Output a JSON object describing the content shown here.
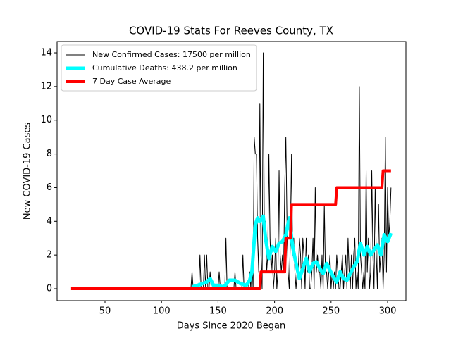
{
  "chart_data": {
    "type": "line",
    "title": "COVID-19 Stats For Reeves County, TX",
    "x_label": "Days Since 2020 Began",
    "y_label": "New COVID-19 Cases",
    "xlim": [
      7.6,
      316.2
    ],
    "ylim": [
      -0.71,
      14.67
    ],
    "xticks": [
      50,
      100,
      150,
      200,
      250,
      300
    ],
    "yticks": [
      0,
      2,
      4,
      6,
      8,
      10,
      12,
      14
    ],
    "legend": "upper left",
    "series": [
      {
        "name": "New Confirmed Cases: 17500 per million",
        "color": "#000000",
        "linewidth": 1,
        "x": [
          126,
          127,
          128,
          129,
          130,
          131,
          132,
          133,
          134,
          135,
          136,
          137,
          138,
          139,
          140,
          141,
          142,
          143,
          144,
          145,
          146,
          147,
          148,
          149,
          150,
          151,
          152,
          153,
          154,
          155,
          156,
          157,
          158,
          159,
          160,
          161,
          162,
          163,
          164,
          165,
          166,
          167,
          168,
          169,
          170,
          171,
          172,
          173,
          174,
          175,
          176,
          177,
          178,
          179,
          180,
          181,
          182,
          183,
          184,
          185,
          186,
          187,
          188,
          189,
          190,
          191,
          192,
          193,
          194,
          195,
          196,
          197,
          198,
          199,
          200,
          201,
          202,
          203,
          204,
          205,
          206,
          207,
          208,
          209,
          210,
          211,
          212,
          213,
          214,
          215,
          216,
          217,
          218,
          219,
          220,
          221,
          222,
          223,
          224,
          225,
          226,
          227,
          228,
          229,
          230,
          231,
          232,
          233,
          234,
          235,
          236,
          237,
          238,
          239,
          240,
          241,
          242,
          243,
          244,
          245,
          246,
          247,
          248,
          249,
          250,
          251,
          252,
          253,
          254,
          255,
          256,
          257,
          258,
          259,
          260,
          261,
          262,
          263,
          264,
          265,
          266,
          267,
          268,
          269,
          270,
          271,
          272,
          273,
          274,
          275,
          276,
          277,
          278,
          279,
          280,
          281,
          282,
          283,
          284,
          285,
          286,
          287,
          288,
          289,
          290,
          291,
          292,
          293,
          294,
          295,
          296,
          297,
          298,
          299,
          300,
          301,
          302,
          303
        ],
        "values": [
          0,
          1,
          0,
          0,
          0,
          0,
          0,
          0,
          2,
          0,
          0,
          0,
          2,
          0,
          2,
          0,
          0,
          1,
          0,
          0,
          0,
          0,
          0,
          0,
          0,
          1,
          0,
          0,
          0,
          0,
          0,
          3,
          0,
          0,
          0,
          0,
          0,
          0,
          0,
          1,
          0,
          0,
          0,
          0,
          0,
          0,
          2,
          0,
          0,
          0,
          0,
          0,
          1,
          0,
          2,
          0,
          9,
          8,
          8,
          3,
          1,
          11,
          2,
          0,
          14,
          3,
          4,
          1,
          2,
          8,
          3,
          1,
          2,
          0,
          1,
          3,
          0,
          1,
          7,
          2,
          1,
          2,
          1,
          6,
          9,
          4,
          1,
          0,
          3,
          8,
          2,
          3,
          1,
          0,
          1,
          1,
          3,
          2,
          0,
          3,
          2,
          0,
          3,
          1,
          2,
          0,
          0,
          1,
          3,
          0,
          6,
          1,
          2,
          1,
          1,
          0,
          2,
          0,
          5,
          1,
          1,
          0,
          1,
          2,
          0,
          1,
          0,
          1,
          0,
          2,
          1,
          0,
          0,
          1,
          2,
          0,
          1,
          2,
          0,
          3,
          1,
          0,
          2,
          0,
          2,
          3,
          0,
          1,
          0,
          12,
          2,
          1,
          0,
          1,
          0,
          7,
          1,
          3,
          0,
          1,
          7,
          2,
          0,
          6,
          2,
          0,
          5,
          1,
          2,
          3,
          0,
          2,
          9,
          1,
          6,
          3,
          4,
          6
        ]
      },
      {
        "name": "Cumulative Deaths: 438.2 per million",
        "color": "#00ffff",
        "linewidth": 5,
        "x": [
          127,
          132,
          136,
          140,
          143,
          146,
          150,
          155,
          160,
          165,
          170,
          175,
          178,
          180,
          183,
          185,
          187,
          190,
          192,
          195,
          198,
          201,
          204,
          207,
          210,
          213,
          216,
          219,
          222,
          225,
          228,
          231,
          234,
          237,
          240,
          243,
          246,
          249,
          252,
          255,
          258,
          261,
          264,
          267,
          270,
          273,
          276,
          279,
          282,
          285,
          288,
          291,
          294,
          297,
          300,
          303
        ],
        "values": [
          0.1,
          0.2,
          0.3,
          0.4,
          0.6,
          0.2,
          0.2,
          0.1,
          0.5,
          0.5,
          0.3,
          0.2,
          0.5,
          1.0,
          3.8,
          4.2,
          4.0,
          4.3,
          3.0,
          1.8,
          2.5,
          2.2,
          2.7,
          2.8,
          3.2,
          4.2,
          2.5,
          1.5,
          0.6,
          1.2,
          1.8,
          1.0,
          1.5,
          1.6,
          1.2,
          0.9,
          1.5,
          1.1,
          0.7,
          0.4,
          1.0,
          0.6,
          0.5,
          0.9,
          1.3,
          1.6,
          2.7,
          2.0,
          2.5,
          2.0,
          2.3,
          2.6,
          2.0,
          3.2,
          2.8,
          3.3
        ]
      },
      {
        "name": "7 Day Case Average",
        "color": "#ff0000",
        "linewidth": 4,
        "x": [
          20,
          187,
          188,
          209,
          210,
          214,
          215,
          254,
          255,
          295,
          296,
          303
        ],
        "values": [
          0,
          0,
          1,
          1,
          3,
          3,
          5,
          5,
          6,
          6,
          7,
          7
        ]
      }
    ]
  }
}
